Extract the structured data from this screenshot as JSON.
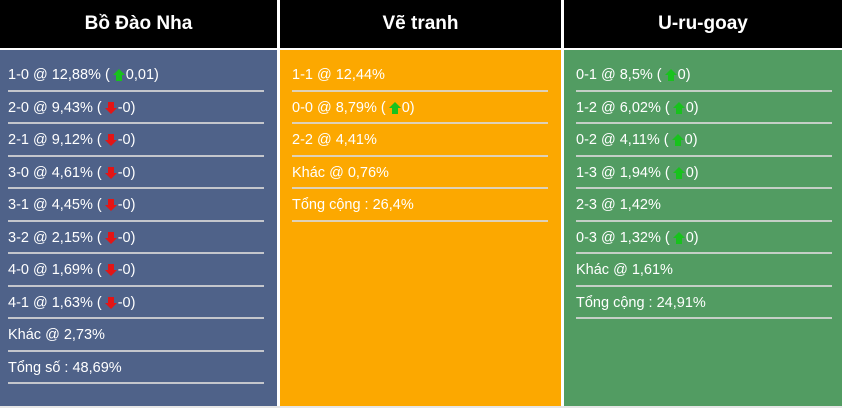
{
  "columns": [
    {
      "title": "Bồ Đào Nha",
      "color": "#4f6289",
      "rows": [
        {
          "text": "1-0 @ 12,88% (",
          "arrow": "up",
          "after": "0,01)"
        },
        {
          "text": "2-0 @ 9,43% (",
          "arrow": "down",
          "after": "-0)"
        },
        {
          "text": "2-1 @ 9,12% (",
          "arrow": "down",
          "after": "-0)"
        },
        {
          "text": "3-0 @ 4,61% (",
          "arrow": "down",
          "after": "-0)"
        },
        {
          "text": "3-1 @ 4,45% (",
          "arrow": "down",
          "after": "-0)"
        },
        {
          "text": "3-2 @ 2,15% (",
          "arrow": "down",
          "after": "-0)"
        },
        {
          "text": "4-0 @ 1,69% (",
          "arrow": "down",
          "after": "-0)"
        },
        {
          "text": "4-1 @ 1,63% (",
          "arrow": "down",
          "after": "-0)"
        },
        {
          "text": "Khác @ 2,73%",
          "arrow": "",
          "after": ""
        },
        {
          "text": "Tổng số : 48,69%",
          "arrow": "",
          "after": ""
        }
      ]
    },
    {
      "title": "Vẽ tranh",
      "color": "#fca800",
      "rows": [
        {
          "text": "1-1 @ 12,44%",
          "arrow": "",
          "after": ""
        },
        {
          "text": "0-0 @ 8,79% (",
          "arrow": "up",
          "after": "0)"
        },
        {
          "text": "2-2 @ 4,41%",
          "arrow": "",
          "after": ""
        },
        {
          "text": "Khác @ 0,76%",
          "arrow": "",
          "after": ""
        },
        {
          "text": "Tổng cộng : 26,4%",
          "arrow": "",
          "after": ""
        }
      ]
    },
    {
      "title": "U-ru-goay",
      "color": "#529c62",
      "rows": [
        {
          "text": "0-1 @ 8,5% (",
          "arrow": "up",
          "after": "0)"
        },
        {
          "text": "1-2 @ 6,02% (",
          "arrow": "up",
          "after": "0)"
        },
        {
          "text": "0-2 @ 4,11% (",
          "arrow": "up",
          "after": "0)"
        },
        {
          "text": "1-3 @ 1,94% (",
          "arrow": "up",
          "after": "0)"
        },
        {
          "text": "2-3 @ 1,42%",
          "arrow": "",
          "after": ""
        },
        {
          "text": "0-3 @ 1,32% (",
          "arrow": "up",
          "after": "0)"
        },
        {
          "text": "Khác @ 1,61%",
          "arrow": "",
          "after": ""
        },
        {
          "text": "Tổng cộng : 24,91%",
          "arrow": "",
          "after": ""
        }
      ]
    }
  ]
}
